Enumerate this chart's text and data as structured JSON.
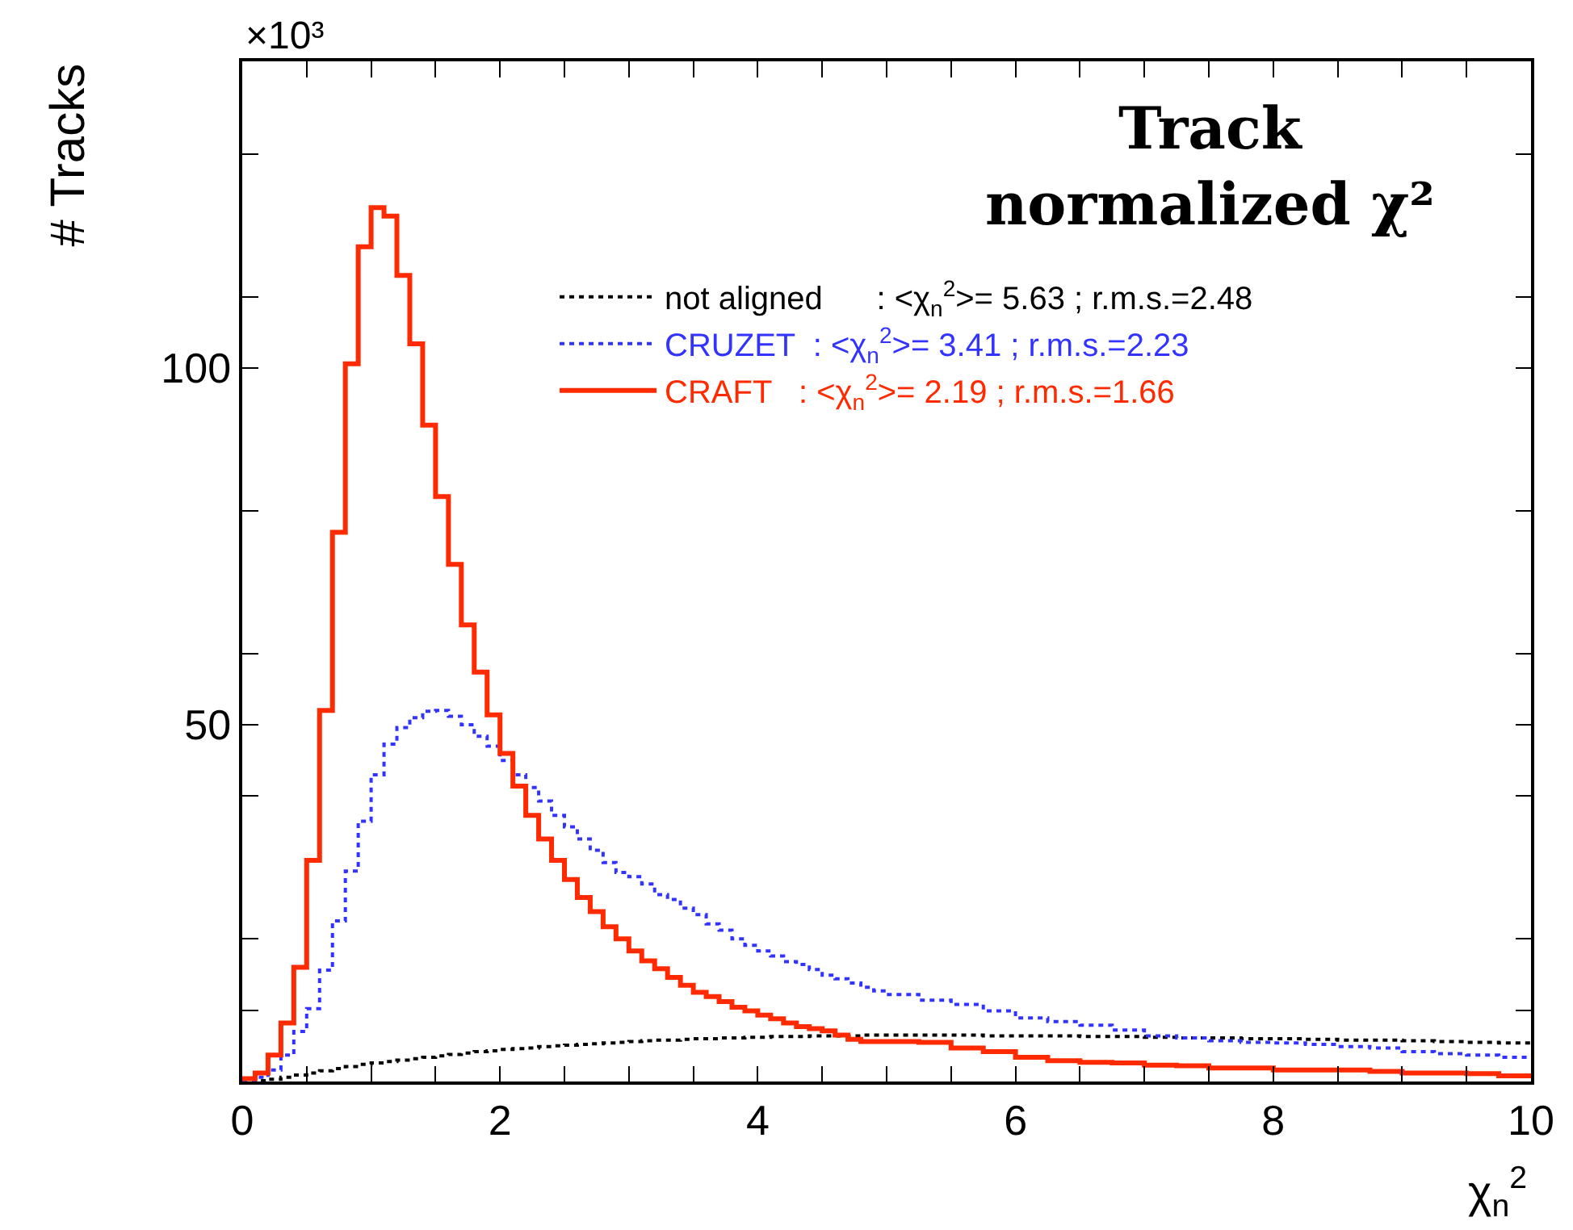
{
  "chart_data": {
    "type": "histogram",
    "title": "Track\nnormalized χ²",
    "xlabel": "χ$_{n}$$^{2}$",
    "ylabel": "# Tracks",
    "annotations": [
      "×10³"
    ],
    "bins": [
      0,
      0.1,
      0.2,
      0.3,
      0.4,
      0.5,
      0.6,
      0.7,
      0.8,
      0.9,
      1.0,
      1.1,
      1.2,
      1.3,
      1.4,
      1.5,
      1.6,
      1.7,
      1.8,
      1.9,
      2.0,
      2.1,
      2.2,
      2.3,
      2.4,
      2.5,
      2.6,
      2.7,
      2.8,
      2.9,
      3.0,
      3.1,
      3.2,
      3.3,
      3.4,
      3.5,
      3.6,
      3.7,
      3.8,
      3.9,
      4.0,
      4.1,
      4.2,
      4.3,
      4.4,
      4.5,
      4.6,
      4.7,
      4.8,
      4.9,
      5.0,
      5.25,
      5.5,
      5.75,
      6.0,
      6.25,
      6.5,
      6.75,
      7.0,
      7.25,
      7.5,
      7.75,
      8.0,
      8.25,
      8.5,
      8.75,
      9.0,
      9.25,
      9.5,
      9.75,
      10.0
    ],
    "series": [
      {
        "name": "not aligned      : <χ$_{n}$$^{2}$>= 5.63 ; r.m.s.=2.48",
        "color": "#000000",
        "line_style": "dotted",
        "values": [
          0,
          0.1,
          0.3,
          0.6,
          0.9,
          1.2,
          1.5,
          1.8,
          2.1,
          2.4,
          2.6,
          2.8,
          3.0,
          3.2,
          3.4,
          3.6,
          3.8,
          4.0,
          4.2,
          4.3,
          4.5,
          4.6,
          4.7,
          4.9,
          5.0,
          5.1,
          5.2,
          5.3,
          5.4,
          5.5,
          5.6,
          5.7,
          5.8,
          5.8,
          5.9,
          6.0,
          6.0,
          6.1,
          6.1,
          6.2,
          6.2,
          6.3,
          6.3,
          6.3,
          6.4,
          6.4,
          6.4,
          6.4,
          6.5,
          6.5,
          6.5,
          6.5,
          6.5,
          6.4,
          6.4,
          6.4,
          6.3,
          6.3,
          6.2,
          6.1,
          6.1,
          6.0,
          6.0,
          5.9,
          5.8,
          5.8,
          5.7,
          5.6,
          5.5,
          5.4
        ]
      },
      {
        "name": "CRUZET  : <χ$_{n}$$^{2}$>= 3.41 ; r.m.s.=2.23",
        "color": "#3333ff",
        "line_style": "dotted",
        "values": [
          0.2,
          0.6,
          1.6,
          3.7,
          7,
          10.2,
          15.6,
          22.5,
          29.5,
          36.5,
          43,
          47.3,
          49.6,
          51,
          51.9,
          52,
          51.2,
          50,
          48.4,
          47,
          45,
          43,
          41.2,
          39.3,
          37.3,
          35.7,
          34,
          32.4,
          30.7,
          29.3,
          28.7,
          27.7,
          26.2,
          25.5,
          24.3,
          23.4,
          22.1,
          21.2,
          20,
          19.1,
          18.3,
          17.6,
          16.8,
          16.4,
          15.7,
          14.9,
          14.4,
          13.8,
          13.2,
          12.7,
          12.2,
          11.4,
          10.8,
          9.9,
          8.9,
          8.4,
          7.9,
          7.2,
          6.4,
          6.1,
          5.7,
          5.5,
          5.4,
          5.2,
          4.9,
          4.7,
          4.2,
          3.9,
          3.7,
          3.4
        ]
      },
      {
        "name": "CRAFT   : <χ$_{n}$$^{2}$>= 2.19 ; r.m.s.=1.66",
        "color": "#ff2a00",
        "line_style": "solid",
        "values": [
          0.4,
          1.2,
          3.7,
          8.2,
          16,
          31,
          52,
          77,
          100.6,
          117,
          122.5,
          121.3,
          113,
          103.4,
          92,
          82,
          72.5,
          64,
          57.4,
          51.4,
          46,
          41.4,
          37.3,
          34,
          31,
          28.3,
          25.8,
          23.8,
          21.7,
          20,
          18.3,
          16.9,
          15.8,
          14.6,
          13.5,
          12.5,
          11.9,
          11.2,
          10.4,
          9.9,
          9.3,
          8.8,
          8.2,
          7.7,
          7.4,
          7.1,
          6.5,
          5.9,
          5.6,
          5.6,
          5.6,
          5.5,
          4.7,
          4.2,
          3.4,
          2.9,
          2.7,
          2.6,
          2.3,
          2.2,
          1.9,
          1.9,
          1.6,
          1.6,
          1.6,
          1.4,
          1.2,
          1.2,
          1.1,
          0.8
        ]
      }
    ],
    "xlim": [
      0,
      10
    ],
    "xticks": [
      0,
      {
        "value": 0.5,
        "label": null
      },
      {
        "value": 1,
        "label": null
      },
      {
        "value": 1.5,
        "label": null
      },
      2,
      {
        "value": 2.5,
        "label": null
      },
      {
        "value": 3,
        "label": null
      },
      {
        "value": 3.5,
        "label": null
      },
      4,
      {
        "value": 4.5,
        "label": null
      },
      {
        "value": 5,
        "label": null
      },
      {
        "value": 5.5,
        "label": null
      },
      6,
      {
        "value": 6.5,
        "label": null
      },
      {
        "value": 7,
        "label": null
      },
      {
        "value": 7.5,
        "label": null
      },
      8,
      {
        "value": 8.5,
        "label": null
      },
      {
        "value": 9,
        "label": null
      },
      {
        "value": 9.5,
        "label": null
      },
      10
    ],
    "ylim": [
      0,
      143
    ],
    "yticks": [
      {
        "value": 10,
        "label": null
      },
      {
        "value": 20,
        "label": null
      },
      {
        "value": 40,
        "label": null
      },
      50,
      {
        "value": 60,
        "label": null
      },
      {
        "value": 80,
        "label": null
      },
      100,
      {
        "value": 110,
        "label": null
      },
      {
        "value": 130,
        "label": null
      }
    ],
    "legend": "top right"
  }
}
